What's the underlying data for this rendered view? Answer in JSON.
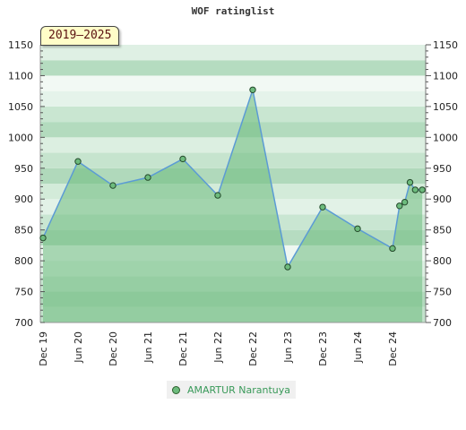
{
  "title": "WOF ratinglist",
  "period_label": "2019–2025",
  "chart_data": {
    "type": "area",
    "title": "WOF ratinglist",
    "xlabel": "",
    "ylabel": "",
    "x_ticks": [
      "Dec 19",
      "Jun 20",
      "Dec 20",
      "Jun 21",
      "Dec 21",
      "Jun 22",
      "Dec 22",
      "Jun 23",
      "Dec 23",
      "Jun 24",
      "Dec 24"
    ],
    "ylim": [
      700,
      1150
    ],
    "y_ticks": [
      700,
      750,
      800,
      850,
      900,
      950,
      1000,
      1050,
      1100,
      1150
    ],
    "grid": true,
    "legend_position": "bottom",
    "series": [
      {
        "name": "AMARTUR Narantuya",
        "color": "#6dbb7d",
        "points": [
          {
            "x": 0.0,
            "y": 837
          },
          {
            "x": 1.0,
            "y": 961
          },
          {
            "x": 2.0,
            "y": 922
          },
          {
            "x": 3.0,
            "y": 935
          },
          {
            "x": 4.0,
            "y": 965
          },
          {
            "x": 5.0,
            "y": 906
          },
          {
            "x": 6.0,
            "y": 1077
          },
          {
            "x": 7.0,
            "y": 790
          },
          {
            "x": 8.0,
            "y": 887
          },
          {
            "x": 9.0,
            "y": 852
          },
          {
            "x": 10.0,
            "y": 820
          },
          {
            "x": 10.2,
            "y": 889
          },
          {
            "x": 10.35,
            "y": 895
          },
          {
            "x": 10.5,
            "y": 927
          },
          {
            "x": 10.65,
            "y": 915
          },
          {
            "x": 10.85,
            "y": 915
          }
        ]
      }
    ]
  }
}
